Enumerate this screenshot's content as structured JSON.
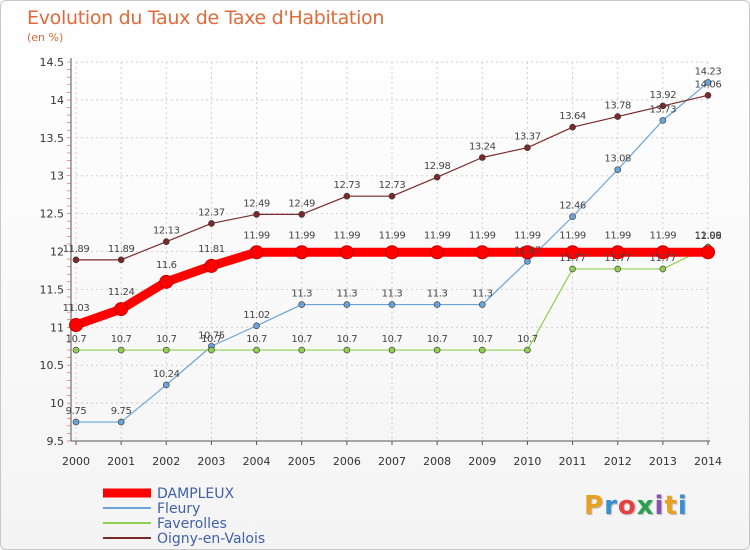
{
  "title": "Evolution du Taux de Taxe d'Habitation",
  "unit_label": "(en %)",
  "logo": {
    "text": "Proxiti",
    "colors": [
      "#e8a020",
      "#3a8fd0",
      "#e84040",
      "#2aa050",
      "#8a50b0",
      "#e8a020",
      "#3a8fd0"
    ]
  },
  "chart_data": {
    "type": "line",
    "title": "Evolution du Taux de Taxe d'Habitation",
    "ylabel": "(en %)",
    "xlabel": "",
    "x": [
      "2000",
      "2001",
      "2002",
      "2003",
      "2004",
      "2005",
      "2006",
      "2007",
      "2008",
      "2009",
      "2010",
      "2011",
      "2012",
      "2013",
      "2014"
    ],
    "ylim": [
      9.5,
      14.5
    ],
    "yticks": [
      "9.5",
      "10",
      "10.5",
      "11",
      "11.5",
      "12",
      "12.5",
      "13",
      "13.5",
      "14",
      "14.5"
    ],
    "grid": true,
    "legend_position": "bottom-left",
    "series": [
      {
        "name": "DAMPLEUX",
        "color": "#ff0000",
        "emphasis": true,
        "values": [
          11.03,
          11.24,
          11.6,
          11.81,
          11.99,
          11.99,
          11.99,
          11.99,
          11.99,
          11.99,
          11.99,
          11.99,
          11.99,
          11.99,
          11.99
        ],
        "labels": [
          "11.03",
          "11.24",
          "11.6",
          "11.81",
          "11.99",
          "11.99",
          "11.99",
          "11.99",
          "11.99",
          "11.99",
          "11.99",
          "11.99",
          "11.99",
          "11.99",
          "11.99"
        ]
      },
      {
        "name": "Fleury",
        "color": "#6aa4d8",
        "emphasis": false,
        "values": [
          9.75,
          9.75,
          10.24,
          10.75,
          11.02,
          11.3,
          11.3,
          11.3,
          11.3,
          11.3,
          11.87,
          12.46,
          13.08,
          13.73,
          14.23
        ],
        "labels": [
          "9.75",
          "9.75",
          "10.24",
          "10.75",
          "11.02",
          "11.3",
          "11.3",
          "11.3",
          "11.3",
          "11.3",
          "11.87",
          "12.46",
          "13.08",
          "13.73",
          "14.23"
        ]
      },
      {
        "name": "Faverolles",
        "color": "#90d050",
        "emphasis": false,
        "values": [
          10.7,
          10.7,
          10.7,
          10.7,
          10.7,
          10.7,
          10.7,
          10.7,
          10.7,
          10.7,
          10.7,
          11.77,
          11.77,
          11.77,
          12.06
        ],
        "labels": [
          "10.7",
          "10.7",
          "10.7",
          "10.7",
          "10.7",
          "10.7",
          "10.7",
          "10.7",
          "10.7",
          "10.7",
          "10.7",
          "11.77",
          "11.77",
          "11.77",
          "12.06"
        ]
      },
      {
        "name": "Oigny-en-Valois",
        "color": "#7a2a2a",
        "emphasis": false,
        "values": [
          11.89,
          11.89,
          12.13,
          12.37,
          12.49,
          12.49,
          12.73,
          12.73,
          12.98,
          13.24,
          13.37,
          13.64,
          13.78,
          13.92,
          14.06
        ],
        "labels": [
          "11.89",
          "11.89",
          "12.13",
          "12.37",
          "12.49",
          "12.49",
          "12.73",
          "12.73",
          "12.98",
          "13.24",
          "13.37",
          "13.64",
          "13.78",
          "13.92",
          "14.06"
        ]
      }
    ]
  }
}
